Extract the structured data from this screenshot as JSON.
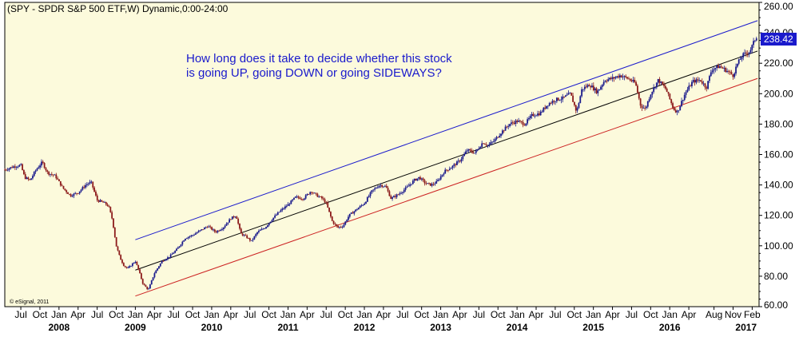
{
  "chart_data": {
    "type": "candlestick",
    "title": "(SPY - SPDR S&P 500 ETF,W) Dynamic,0:00-24:00",
    "annotation": [
      "How long does it take to decide whether this stock",
      "is going UP, going DOWN or going SIDEWAYS?"
    ],
    "credit": "© eSignal, 2011",
    "last_price": "238.42",
    "ylim": [
      60,
      260
    ],
    "y_ticks": [
      "260.00",
      "240.00",
      "220.00",
      "200.00",
      "180.00",
      "160.00",
      "140.00",
      "120.00",
      "100.00",
      "80.00",
      "60.00"
    ],
    "x_months": [
      {
        "label": "Jul",
        "date": 2007.5
      },
      {
        "label": "Oct",
        "date": 2007.75
      },
      {
        "label": "Jan",
        "date": 2008.0
      },
      {
        "label": "Apr",
        "date": 2008.25
      },
      {
        "label": "Jul",
        "date": 2008.5
      },
      {
        "label": "Oct",
        "date": 2008.75
      },
      {
        "label": "Jan",
        "date": 2009.0
      },
      {
        "label": "Apr",
        "date": 2009.25
      },
      {
        "label": "Jul",
        "date": 2009.5
      },
      {
        "label": "Oct",
        "date": 2009.75
      },
      {
        "label": "Jan",
        "date": 2010.0
      },
      {
        "label": "Apr",
        "date": 2010.25
      },
      {
        "label": "Jul",
        "date": 2010.5
      },
      {
        "label": "Oct",
        "date": 2010.75
      },
      {
        "label": "Jan",
        "date": 2011.0
      },
      {
        "label": "Apr",
        "date": 2011.25
      },
      {
        "label": "Jul",
        "date": 2011.5
      },
      {
        "label": "Oct",
        "date": 2011.75
      },
      {
        "label": "Jan",
        "date": 2012.0
      },
      {
        "label": "Apr",
        "date": 2012.25
      },
      {
        "label": "Jul",
        "date": 2012.5
      },
      {
        "label": "Oct",
        "date": 2012.75
      },
      {
        "label": "Jan",
        "date": 2013.0
      },
      {
        "label": "Apr",
        "date": 2013.25
      },
      {
        "label": "Jul",
        "date": 2013.5
      },
      {
        "label": "Oct",
        "date": 2013.75
      },
      {
        "label": "Jan",
        "date": 2014.0
      },
      {
        "label": "Apr",
        "date": 2014.25
      },
      {
        "label": "Jul",
        "date": 2014.5
      },
      {
        "label": "Oct",
        "date": 2014.75
      },
      {
        "label": "Jan",
        "date": 2015.0
      },
      {
        "label": "Apr",
        "date": 2015.25
      },
      {
        "label": "Jul",
        "date": 2015.5
      },
      {
        "label": "Oct",
        "date": 2015.75
      },
      {
        "label": "Jan",
        "date": 2016.0
      },
      {
        "label": "Apr",
        "date": 2016.25
      },
      {
        "label": "Aug",
        "date": 2016.58
      },
      {
        "label": "Nov",
        "date": 2016.83
      },
      {
        "label": "Feb",
        "date": 2017.08
      }
    ],
    "x_years": [
      {
        "label": "2008",
        "date": 2008.0
      },
      {
        "label": "2009",
        "date": 2009.0
      },
      {
        "label": "2010",
        "date": 2010.0
      },
      {
        "label": "2011",
        "date": 2011.0
      },
      {
        "label": "2012",
        "date": 2012.0
      },
      {
        "label": "2013",
        "date": 2013.0
      },
      {
        "label": "2014",
        "date": 2014.0
      },
      {
        "label": "2015",
        "date": 2015.0
      },
      {
        "label": "2016",
        "date": 2016.0
      },
      {
        "label": "2017",
        "date": 2017.0
      }
    ],
    "price_points": [
      [
        2007.29,
        150
      ],
      [
        2007.4,
        152
      ],
      [
        2007.5,
        153
      ],
      [
        2007.55,
        145
      ],
      [
        2007.62,
        143
      ],
      [
        2007.7,
        150
      ],
      [
        2007.78,
        155
      ],
      [
        2007.85,
        148
      ],
      [
        2007.95,
        146
      ],
      [
        2008.05,
        138
      ],
      [
        2008.15,
        133
      ],
      [
        2008.25,
        135
      ],
      [
        2008.35,
        140
      ],
      [
        2008.42,
        142
      ],
      [
        2008.5,
        130
      ],
      [
        2008.6,
        128
      ],
      [
        2008.65,
        126
      ],
      [
        2008.7,
        117
      ],
      [
        2008.75,
        100
      ],
      [
        2008.8,
        92
      ],
      [
        2008.85,
        87
      ],
      [
        2008.9,
        85
      ],
      [
        2009.0,
        90
      ],
      [
        2009.05,
        83
      ],
      [
        2009.1,
        75
      ],
      [
        2009.17,
        71
      ],
      [
        2009.25,
        82
      ],
      [
        2009.35,
        90
      ],
      [
        2009.45,
        93
      ],
      [
        2009.55,
        98
      ],
      [
        2009.65,
        105
      ],
      [
        2009.75,
        107
      ],
      [
        2009.85,
        110
      ],
      [
        2009.95,
        113
      ],
      [
        2010.05,
        109
      ],
      [
        2010.15,
        112
      ],
      [
        2010.25,
        118
      ],
      [
        2010.32,
        120
      ],
      [
        2010.38,
        108
      ],
      [
        2010.45,
        106
      ],
      [
        2010.52,
        103
      ],
      [
        2010.6,
        109
      ],
      [
        2010.7,
        112
      ],
      [
        2010.8,
        118
      ],
      [
        2010.9,
        123
      ],
      [
        2011.0,
        127
      ],
      [
        2011.1,
        132
      ],
      [
        2011.2,
        131
      ],
      [
        2011.3,
        136
      ],
      [
        2011.38,
        133
      ],
      [
        2011.45,
        131
      ],
      [
        2011.5,
        128
      ],
      [
        2011.58,
        116
      ],
      [
        2011.65,
        112
      ],
      [
        2011.72,
        113
      ],
      [
        2011.8,
        120
      ],
      [
        2011.9,
        124
      ],
      [
        2012.0,
        128
      ],
      [
        2012.1,
        136
      ],
      [
        2012.2,
        140
      ],
      [
        2012.28,
        139
      ],
      [
        2012.35,
        131
      ],
      [
        2012.45,
        134
      ],
      [
        2012.55,
        138
      ],
      [
        2012.65,
        143
      ],
      [
        2012.72,
        145
      ],
      [
        2012.8,
        141
      ],
      [
        2012.88,
        140
      ],
      [
        2012.95,
        142
      ],
      [
        2013.05,
        149
      ],
      [
        2013.15,
        152
      ],
      [
        2013.25,
        156
      ],
      [
        2013.35,
        163
      ],
      [
        2013.45,
        161
      ],
      [
        2013.55,
        168
      ],
      [
        2013.62,
        166
      ],
      [
        2013.7,
        169
      ],
      [
        2013.8,
        175
      ],
      [
        2013.9,
        180
      ],
      [
        2014.0,
        182
      ],
      [
        2014.1,
        180
      ],
      [
        2014.2,
        186
      ],
      [
        2014.3,
        187
      ],
      [
        2014.4,
        193
      ],
      [
        2014.5,
        196
      ],
      [
        2014.6,
        197
      ],
      [
        2014.7,
        200
      ],
      [
        2014.78,
        188
      ],
      [
        2014.85,
        203
      ],
      [
        2014.95,
        206
      ],
      [
        2015.05,
        201
      ],
      [
        2015.15,
        209
      ],
      [
        2015.25,
        210
      ],
      [
        2015.35,
        212
      ],
      [
        2015.45,
        210
      ],
      [
        2015.55,
        207
      ],
      [
        2015.62,
        192
      ],
      [
        2015.68,
        190
      ],
      [
        2015.75,
        200
      ],
      [
        2015.85,
        209
      ],
      [
        2015.95,
        203
      ],
      [
        2016.05,
        190
      ],
      [
        2016.1,
        188
      ],
      [
        2016.2,
        200
      ],
      [
        2016.3,
        208
      ],
      [
        2016.4,
        209
      ],
      [
        2016.48,
        204
      ],
      [
        2016.55,
        216
      ],
      [
        2016.65,
        218
      ],
      [
        2016.75,
        215
      ],
      [
        2016.83,
        212
      ],
      [
        2016.88,
        219
      ],
      [
        2016.95,
        225
      ],
      [
        2017.05,
        228
      ],
      [
        2017.12,
        236
      ],
      [
        2017.15,
        238.42
      ]
    ],
    "trendlines": [
      {
        "color": "#1a1acc",
        "from": [
          2009.0,
          104
        ],
        "to": [
          2017.15,
          248
        ]
      },
      {
        "color": "#000000",
        "from": [
          2009.0,
          84
        ],
        "to": [
          2017.15,
          228
        ]
      },
      {
        "color": "#cc2222",
        "from": [
          2009.0,
          67
        ],
        "to": [
          2017.15,
          210
        ]
      }
    ],
    "colors": {
      "background": "#fcfadc",
      "up": "#1a1a8c",
      "down": "#8c1a1a",
      "last_price_box": "#1a1acc"
    }
  }
}
